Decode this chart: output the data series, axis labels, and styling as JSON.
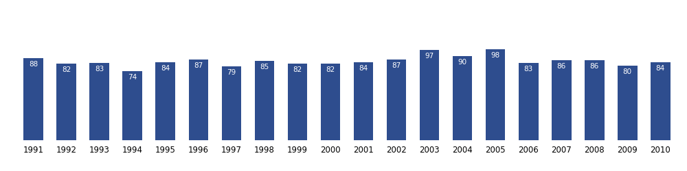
{
  "years": [
    1991,
    1992,
    1993,
    1994,
    1995,
    1996,
    1997,
    1998,
    1999,
    2000,
    2001,
    2002,
    2003,
    2004,
    2005,
    2006,
    2007,
    2008,
    2009,
    2010
  ],
  "values": [
    88,
    82,
    83,
    74,
    84,
    87,
    79,
    85,
    82,
    82,
    84,
    87,
    97,
    90,
    98,
    83,
    86,
    86,
    80,
    84
  ],
  "bar_color": "#2e4d8e",
  "label_color": "#ffffff",
  "label_fontsize": 7.5,
  "tick_fontsize": 8.5,
  "background_color": "#ffffff",
  "ylim": [
    0,
    145
  ],
  "bar_width": 0.6
}
